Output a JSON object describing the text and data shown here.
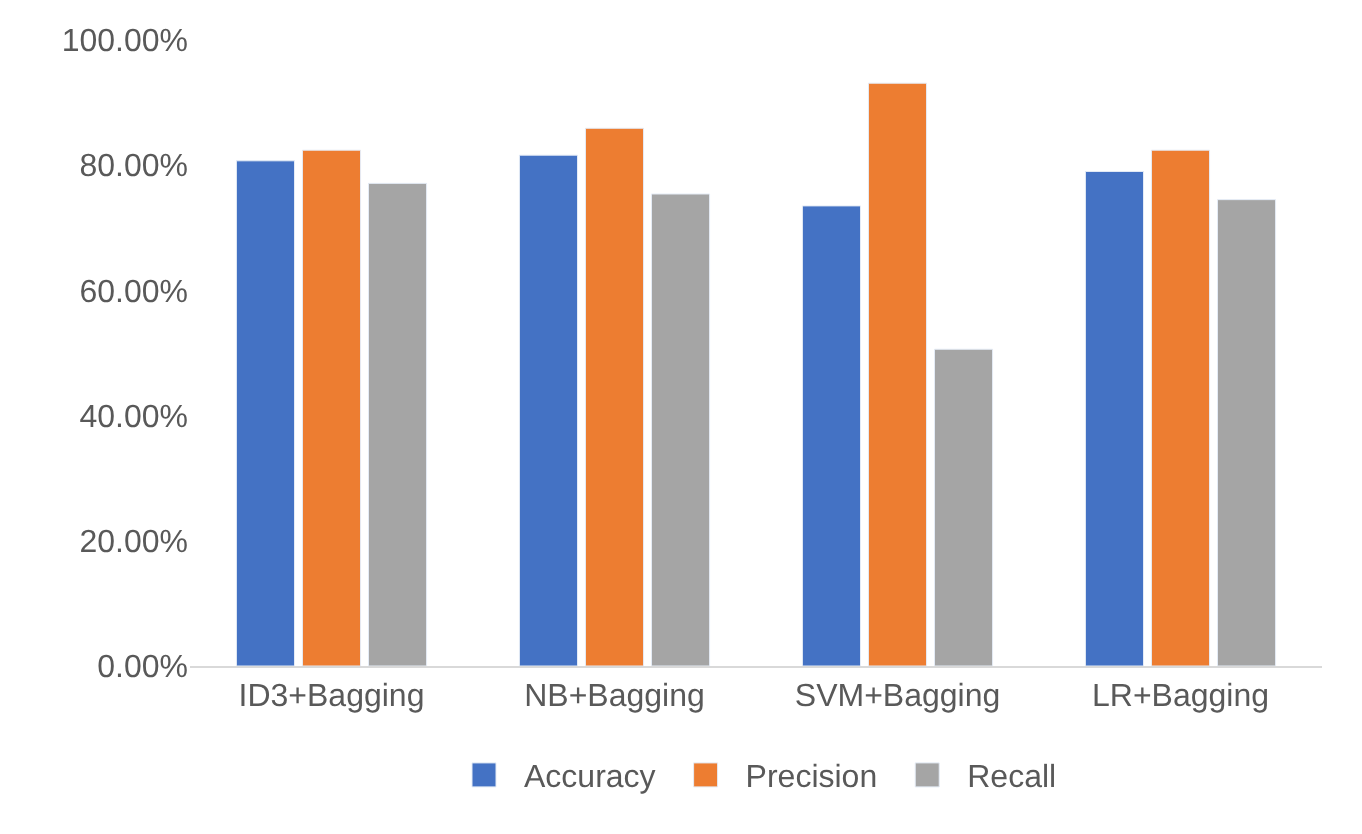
{
  "chart_data": {
    "type": "bar",
    "categories": [
      "ID3+Bagging",
      "NB+Bagging",
      "SVM+Bagging",
      "LR+Bagging"
    ],
    "series": [
      {
        "name": "Accuracy",
        "color": "#4472c4",
        "values": [
          80.7,
          81.6,
          73.5,
          79.0
        ]
      },
      {
        "name": "Precision",
        "color": "#ed7d31",
        "values": [
          82.4,
          85.9,
          93.1,
          82.4
        ]
      },
      {
        "name": "Recall",
        "color": "#a5a5a5",
        "values": [
          77.1,
          75.4,
          50.6,
          74.5
        ]
      }
    ],
    "ylim": [
      0,
      100
    ],
    "yticks": [
      {
        "value": 0,
        "label": "0.00%"
      },
      {
        "value": 20,
        "label": "20.00%"
      },
      {
        "value": 40,
        "label": "40.00%"
      },
      {
        "value": 60,
        "label": "60.00%"
      },
      {
        "value": 80,
        "label": "80.00%"
      },
      {
        "value": 100,
        "label": "100.00%"
      }
    ],
    "grid": false,
    "legend": "bottom"
  }
}
